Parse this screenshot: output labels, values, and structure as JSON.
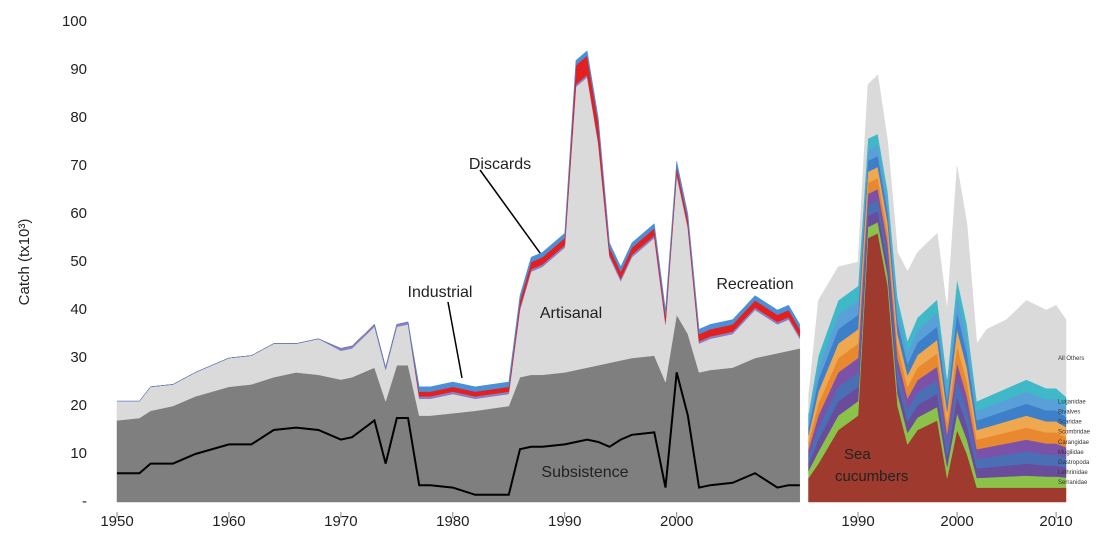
{
  "chart_data": [
    {
      "type": "area",
      "stacked": true,
      "y_label": "Catch (tx10³)",
      "x": [
        1950,
        1952,
        1953,
        1955,
        1957,
        1960,
        1962,
        1964,
        1966,
        1968,
        1970,
        1971,
        1973,
        1974,
        1975,
        1976,
        1977,
        1978,
        1980,
        1982,
        1985,
        1986,
        1987,
        1988,
        1990,
        1991,
        1992,
        1993,
        1994,
        1995,
        1996,
        1998,
        1999,
        2000,
        2001,
        2002,
        2003,
        2005,
        2007,
        2009,
        2010,
        2011
      ],
      "xlim": [
        1950,
        2012
      ],
      "xticks": [
        1950,
        1960,
        1970,
        1980,
        1990,
        2000
      ],
      "ylim": [
        0,
        100
      ],
      "yticks": [
        {
          "value": 0,
          "label": "-"
        },
        10,
        20,
        30,
        40,
        50,
        60,
        70,
        80,
        90,
        100
      ],
      "series": [
        {
          "name": "Subsistence",
          "color": "#7f7f7f",
          "values": [
            17,
            17.5,
            19,
            20,
            22,
            24,
            24.5,
            26,
            27,
            26.5,
            25.5,
            26,
            28,
            21,
            28.5,
            28.5,
            18,
            18,
            18.5,
            19,
            20,
            26,
            26.5,
            26.5,
            27,
            27.5,
            28,
            28.5,
            29,
            29.5,
            30,
            30.5,
            25,
            39,
            35,
            27,
            27.5,
            28,
            30,
            31,
            31.5,
            32
          ]
        },
        {
          "name": "Artisanal",
          "color": "#dadada",
          "values": [
            4,
            3.5,
            5,
            4.5,
            5,
            6,
            6,
            7,
            6,
            7.5,
            6,
            6,
            8.5,
            6.5,
            8,
            8.5,
            3.5,
            3.5,
            4,
            2.5,
            2.5,
            14,
            21.5,
            22.5,
            26,
            59,
            60.5,
            46,
            22,
            16.5,
            21,
            24.5,
            12,
            29,
            22,
            6,
            6.5,
            7,
            10,
            6,
            6.5,
            2
          ]
        },
        {
          "name": "Industrial",
          "color": "#8a7fc4",
          "values": [
            0,
            0,
            0,
            0,
            0,
            0,
            0,
            0,
            0,
            0,
            0.5,
            0.5,
            0.5,
            0.5,
            0.5,
            0.5,
            0.5,
            0.5,
            0.5,
            0.5,
            0.5,
            0.5,
            0.5,
            0.5,
            0.5,
            0.5,
            0.5,
            0.5,
            0.5,
            0.5,
            0.5,
            0.5,
            0.5,
            0.5,
            0.5,
            0.5,
            0.5,
            0.5,
            0.5,
            0.5,
            0.5,
            0.5
          ]
        },
        {
          "name": "Discards",
          "color": "#e32020",
          "values": [
            0,
            0,
            0,
            0,
            0,
            0,
            0,
            0,
            0,
            0,
            0,
            0,
            0,
            0,
            0,
            0,
            1,
            1,
            1,
            1,
            1,
            1.5,
            1.5,
            1.5,
            1.5,
            4,
            4,
            4,
            1.5,
            1.5,
            1.5,
            1.5,
            1.5,
            1.5,
            1.5,
            1.5,
            1.5,
            1.5,
            1.5,
            1.5,
            1.5,
            1.5
          ]
        },
        {
          "name": "Recreation",
          "color": "#4a8fd8",
          "values": [
            0,
            0,
            0,
            0,
            0,
            0,
            0,
            0,
            0,
            0,
            0,
            0,
            0,
            0,
            0,
            0,
            1,
            1,
            1,
            1,
            1,
            1,
            1,
            1,
            1,
            1,
            1,
            1,
            1,
            1,
            1,
            1,
            1,
            1,
            1,
            1,
            1,
            1,
            1,
            1,
            1,
            1
          ]
        }
      ],
      "lines": [
        {
          "color": "#000000",
          "values": [
            6,
            6,
            8,
            8,
            10,
            12,
            12,
            15,
            15.5,
            15,
            13,
            13.5,
            17,
            8,
            17.5,
            17.5,
            3.5,
            3.5,
            3,
            1.5,
            1.5,
            11,
            11.5,
            11.5,
            12,
            12.5,
            13,
            12.5,
            11.5,
            13,
            14,
            14.5,
            3,
            27,
            18,
            3,
            3.5,
            4,
            6,
            3,
            3.5,
            3.5
          ]
        }
      ],
      "annotations": [
        "Discards",
        "Industrial",
        "Artisanal",
        "Recreation",
        "Subsistence"
      ]
    },
    {
      "type": "area",
      "stacked": true,
      "x": [
        1985,
        1986,
        1988,
        1990,
        1991,
        1992,
        1993,
        1994,
        1995,
        1996,
        1998,
        1999,
        2000,
        2001,
        2002,
        2003,
        2005,
        2007,
        2009,
        2010,
        2011
      ],
      "xlim": [
        1985,
        2011
      ],
      "xticks": [
        1990,
        2000,
        2010
      ],
      "ylim": [
        0,
        100
      ],
      "series": [
        {
          "name": "Sea cucumbers",
          "color": "#9e3a2e",
          "values": [
            5,
            8,
            15,
            18,
            55,
            56,
            45,
            20,
            12,
            15,
            17,
            5,
            15,
            10,
            3,
            3,
            3,
            3,
            3,
            3,
            3
          ]
        },
        {
          "name": "Serranidae",
          "color": "#8bc34a",
          "values": [
            1.5,
            2.5,
            3,
            3,
            2.3,
            2.3,
            2.2,
            2.5,
            2.4,
            2.6,
            2.8,
            2.3,
            3.5,
            3,
            2,
            2.1,
            2.3,
            2.5,
            2.3,
            2.3,
            2.1
          ]
        },
        {
          "name": "Lethrinidae",
          "color": "#6a4c9c",
          "values": [
            1.5,
            2.5,
            3,
            3,
            2.3,
            2.3,
            2.2,
            2.5,
            2.4,
            2.6,
            2.8,
            2.3,
            3.5,
            3,
            2,
            2.1,
            2.3,
            2.5,
            2.3,
            2.3,
            2.1
          ]
        },
        {
          "name": "Gastropoda",
          "color": "#4a6fb5",
          "values": [
            1.5,
            2.5,
            3,
            3,
            2.3,
            2.3,
            2.2,
            2.5,
            2.4,
            2.6,
            2.8,
            2.3,
            3.5,
            3,
            2,
            2.1,
            2.3,
            2.5,
            2.3,
            2.3,
            2.1
          ]
        },
        {
          "name": "Mugilidae",
          "color": "#7b52a8",
          "values": [
            1.5,
            2.5,
            3,
            3,
            2.3,
            2.3,
            2.2,
            2.5,
            2.4,
            2.6,
            2.8,
            2.3,
            3.5,
            3,
            2,
            2.1,
            2.3,
            2.5,
            2.3,
            2.3,
            2.1
          ]
        },
        {
          "name": "Carangidae",
          "color": "#e8892f",
          "values": [
            1.5,
            2.5,
            3,
            3,
            2.3,
            2.3,
            2.2,
            2.5,
            2.4,
            2.6,
            2.8,
            2.3,
            3.5,
            3,
            2,
            2.1,
            2.3,
            2.5,
            2.3,
            2.3,
            2.1
          ]
        },
        {
          "name": "Scombridae",
          "color": "#f0a850",
          "values": [
            1.5,
            2.5,
            3,
            3,
            2.3,
            2.3,
            2.2,
            2.5,
            2.4,
            2.6,
            2.8,
            2.3,
            3.5,
            3,
            2,
            2.1,
            2.3,
            2.5,
            2.3,
            2.3,
            2.1
          ]
        },
        {
          "name": "Scaridae",
          "color": "#3d7fc9",
          "values": [
            1.5,
            2.5,
            3,
            3,
            2.3,
            2.3,
            2.2,
            2.5,
            2.4,
            2.6,
            2.8,
            2.3,
            3.5,
            3,
            2,
            2.1,
            2.3,
            2.5,
            2.3,
            2.3,
            2.1
          ]
        },
        {
          "name": "Bivalves",
          "color": "#5aa0d8",
          "values": [
            1.5,
            2.5,
            3,
            3,
            2.3,
            2.3,
            2.2,
            2.5,
            2.4,
            2.6,
            2.8,
            2.3,
            3.5,
            3,
            2,
            2.1,
            2.3,
            2.5,
            2.3,
            2.3,
            2.1
          ]
        },
        {
          "name": "Lutjanidae",
          "color": "#3fb8c8",
          "values": [
            1.5,
            2.5,
            3,
            3,
            2.3,
            2.3,
            2.2,
            2.5,
            2.4,
            2.6,
            2.8,
            2.3,
            3.5,
            3,
            2,
            2.1,
            2.3,
            2.5,
            2.3,
            2.3,
            2.1
          ]
        },
        {
          "name": "All Others",
          "color": "#dadada",
          "values": [
            3.5,
            11.5,
            7,
            5,
            11.3,
            12.3,
            10.2,
            9.5,
            14.4,
            13.6,
            13.8,
            14.3,
            23.5,
            21,
            12,
            14.1,
            14.3,
            16.5,
            16.3,
            17.3,
            16.1
          ]
        }
      ]
    }
  ]
}
